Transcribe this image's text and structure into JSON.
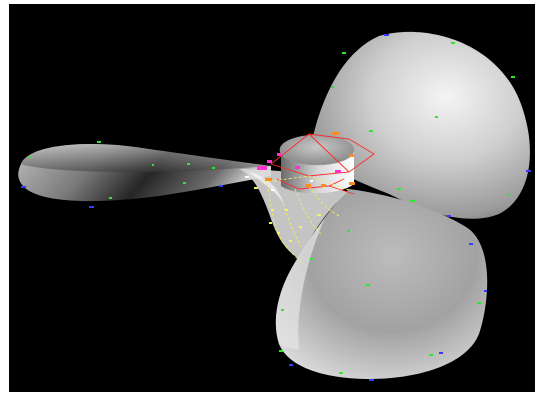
{
  "viewport": {
    "background": "#000000",
    "frame_background": "#ffffff"
  },
  "model": {
    "blades": [
      "upper-right-blade",
      "left-blade",
      "lower-right-blade"
    ],
    "surface_color_light": "#e6e6e6",
    "surface_color_dark": "#2a2a2a"
  },
  "annotations": {
    "colors": {
      "green": "#2ee82e",
      "blue": "#3a3aff",
      "red": "#ff2a2a",
      "magenta": "#ff33cc",
      "orange": "#ff8c1a",
      "yellow": "#f5f25a",
      "white": "#ffffff"
    }
  }
}
